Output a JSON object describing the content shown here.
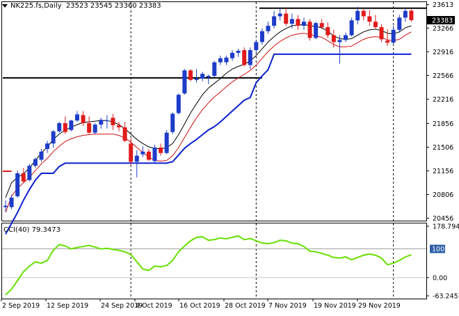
{
  "header": {
    "symbol": "NK225.fs,Daily",
    "ohlc": "23523 23545 23360 23383"
  },
  "main_panel": {
    "y_ticks": [
      "23613",
      "23266",
      "22916",
      "22566",
      "22216",
      "21856",
      "21506",
      "21156",
      "20806",
      "20456"
    ],
    "current_price_label": "23383",
    "y_range": [
      20420,
      23650
    ]
  },
  "cci_panel": {
    "label": "CCI(40) 79.3473",
    "y_ticks": [
      "178.7944",
      "100",
      "0.00",
      "-63.2457"
    ],
    "level_label": "100",
    "y_range": [
      -63.2457,
      178.7944
    ]
  },
  "x_ticks": [
    "2 Sep 2019",
    "12 Sep 2019",
    "24 Sep 2019",
    "4 Oct 2019",
    "16 Oct 2019",
    "28 Oct 2019",
    "7 Nov 2019",
    "19 Nov 2019",
    "29 Nov 2019"
  ],
  "colors": {
    "bull": "#1e3cc8",
    "bear": "#e01b1b",
    "ma_fast": "#000000",
    "ma_slow": "#d01010",
    "trend": "#0a1fd0",
    "cci": "#66e000",
    "level_fill": "#2d5fa8"
  },
  "chart_data": {
    "type": "candlestick",
    "main": {
      "candles": [
        [
          20620,
          20720,
          20560,
          20640
        ],
        [
          20620,
          20800,
          20590,
          20760
        ],
        [
          20780,
          21160,
          20760,
          21120
        ],
        [
          21120,
          21200,
          20980,
          21000
        ],
        [
          21020,
          21260,
          21000,
          21230
        ],
        [
          21230,
          21350,
          21200,
          21330
        ],
        [
          21320,
          21480,
          21290,
          21440
        ],
        [
          21480,
          21600,
          21420,
          21560
        ],
        [
          21560,
          21760,
          21500,
          21740
        ],
        [
          21740,
          21880,
          21720,
          21860
        ],
        [
          21860,
          21960,
          21700,
          21730
        ],
        [
          21760,
          21910,
          21740,
          21900
        ],
        [
          21900,
          22040,
          21880,
          21990
        ],
        [
          21980,
          22040,
          21820,
          21860
        ],
        [
          21860,
          21960,
          21700,
          21720
        ],
        [
          21720,
          21860,
          21700,
          21840
        ],
        [
          21840,
          21940,
          21780,
          21910
        ],
        [
          21900,
          21980,
          21780,
          21900
        ],
        [
          21940,
          22000,
          21760,
          21830
        ],
        [
          21830,
          21880,
          21740,
          21800
        ],
        [
          21800,
          21880,
          21580,
          21600
        ],
        [
          21560,
          21640,
          21240,
          21290
        ],
        [
          21290,
          21460,
          21060,
          21380
        ],
        [
          21400,
          21520,
          21360,
          21440
        ],
        [
          21440,
          21480,
          21300,
          21320
        ],
        [
          21300,
          21540,
          21280,
          21500
        ],
        [
          21500,
          21560,
          21380,
          21420
        ],
        [
          21420,
          21760,
          21400,
          21720
        ],
        [
          21730,
          22020,
          21700,
          22000
        ],
        [
          22010,
          22300,
          21990,
          22280
        ],
        [
          22300,
          22660,
          22280,
          22640
        ],
        [
          22640,
          22660,
          22480,
          22500
        ],
        [
          22500,
          22660,
          22460,
          22520
        ],
        [
          22520,
          22620,
          22480,
          22590
        ],
        [
          22540,
          22580,
          22440,
          22560
        ],
        [
          22560,
          22780,
          22540,
          22760
        ],
        [
          22760,
          22860,
          22720,
          22820
        ],
        [
          22760,
          22860,
          22720,
          22830
        ],
        [
          22820,
          22940,
          22780,
          22900
        ],
        [
          22900,
          22960,
          22840,
          22930
        ],
        [
          22940,
          22980,
          22700,
          22720
        ],
        [
          22720,
          22980,
          22660,
          22940
        ],
        [
          22940,
          23080,
          22900,
          23060
        ],
        [
          23060,
          23260,
          23020,
          23220
        ],
        [
          23220,
          23360,
          23180,
          23300
        ],
        [
          23300,
          23520,
          23260,
          23440
        ],
        [
          23440,
          23560,
          23380,
          23480
        ],
        [
          23480,
          23560,
          23300,
          23330
        ],
        [
          23330,
          23480,
          23260,
          23400
        ],
        [
          23400,
          23460,
          23240,
          23300
        ],
        [
          23300,
          23420,
          23240,
          23360
        ],
        [
          23360,
          23400,
          23080,
          23120
        ],
        [
          23120,
          23360,
          23100,
          23340
        ],
        [
          23340,
          23400,
          23250,
          23280
        ],
        [
          23280,
          23350,
          23120,
          23160
        ],
        [
          23160,
          23240,
          22980,
          23060
        ],
        [
          23060,
          23160,
          22740,
          23090
        ],
        [
          23090,
          23200,
          23060,
          23160
        ],
        [
          23160,
          23420,
          23140,
          23380
        ],
        [
          23380,
          23580,
          23320,
          23520
        ],
        [
          23520,
          23560,
          23380,
          23440
        ],
        [
          23440,
          23530,
          23300,
          23360
        ],
        [
          23360,
          23460,
          23260,
          23280
        ],
        [
          23280,
          23320,
          23060,
          23100
        ],
        [
          23080,
          23250,
          23000,
          23050
        ],
        [
          23050,
          23300,
          23020,
          23240
        ],
        [
          23240,
          23460,
          23200,
          23420
        ],
        [
          23420,
          23560,
          23360,
          23520
        ],
        [
          23523,
          23545,
          23360,
          23383
        ]
      ],
      "ma_fast": [
        20760,
        20980,
        21060,
        21110,
        21200,
        21310,
        21420,
        21510,
        21620,
        21700,
        21760,
        21800,
        21840,
        21870,
        21880,
        21890,
        21900,
        21900,
        21880,
        21840,
        21780,
        21700,
        21620,
        21560,
        21510,
        21490,
        21480,
        21500,
        21560,
        21690,
        21850,
        22010,
        22150,
        22280,
        22380,
        22450,
        22520,
        22600,
        22660,
        22700,
        22730,
        22780,
        22860,
        22960,
        23060,
        23140,
        23210,
        23260,
        23300,
        23310,
        23320,
        23300,
        23290,
        23270,
        23220,
        23150,
        23110,
        23100,
        23110,
        23160,
        23210,
        23240,
        23250,
        23230,
        23190,
        23180,
        23210,
        23270,
        23300
      ],
      "ma_slow": [
        20540,
        20780,
        20900,
        20980,
        21060,
        21160,
        21260,
        21340,
        21440,
        21520,
        21590,
        21630,
        21660,
        21680,
        21690,
        21700,
        21700,
        21700,
        21700,
        21680,
        21640,
        21580,
        21500,
        21430,
        21360,
        21310,
        21300,
        21310,
        21380,
        21500,
        21650,
        21800,
        21940,
        22060,
        22160,
        22250,
        22320,
        22400,
        22470,
        22530,
        22580,
        22640,
        22720,
        22820,
        22920,
        23000,
        23070,
        23120,
        23160,
        23180,
        23190,
        23170,
        23150,
        23130,
        23080,
        23020,
        22990,
        22990,
        23000,
        23050,
        23100,
        23130,
        23140,
        23130,
        23090,
        23080,
        23100,
        23160,
        23210
      ],
      "trend": [
        20220,
        20380,
        20540,
        20720,
        20880,
        21020,
        21120,
        21120,
        21120,
        21220,
        21270,
        21270,
        21270,
        21270,
        21270,
        21270,
        21270,
        21270,
        21270,
        21270,
        21270,
        21270,
        21270,
        21270,
        21270,
        21270,
        21270,
        21270,
        21290,
        21390,
        21490,
        21560,
        21620,
        21690,
        21760,
        21810,
        21880,
        21960,
        22040,
        22120,
        22200,
        22240,
        22460,
        22560,
        22650,
        22880,
        22880,
        22880,
        22880,
        22880,
        22880,
        22880,
        22880,
        22880,
        22880,
        22880,
        22880,
        22880,
        22880,
        22880,
        22880,
        22880,
        22880,
        22880,
        22880,
        22880,
        22880,
        22880,
        22880
      ],
      "hlines": [
        {
          "value": 21150,
          "from_index": 0,
          "to_index": 1,
          "color": "#e01b1b"
        },
        {
          "value": 22530,
          "from_index": 0,
          "to_index": 43,
          "color": "#000000"
        },
        {
          "value": 23560,
          "from_index": 43,
          "to_index": 75,
          "color": "#000000"
        }
      ],
      "vlines_at_index": [
        21,
        42,
        65
      ]
    },
    "cci": [
      -60,
      -40,
      -10,
      20,
      40,
      55,
      50,
      60,
      95,
      115,
      110,
      100,
      105,
      108,
      112,
      106,
      100,
      102,
      98,
      95,
      90,
      80,
      55,
      30,
      25,
      40,
      38,
      42,
      60,
      90,
      110,
      128,
      140,
      142,
      130,
      132,
      138,
      135,
      140,
      145,
      132,
      136,
      128,
      120,
      118,
      122,
      130,
      128,
      120,
      118,
      108,
      92,
      90,
      84,
      78,
      70,
      68,
      72,
      62,
      70,
      78,
      82,
      78,
      68,
      45,
      50,
      60,
      72,
      79.3473
    ]
  }
}
